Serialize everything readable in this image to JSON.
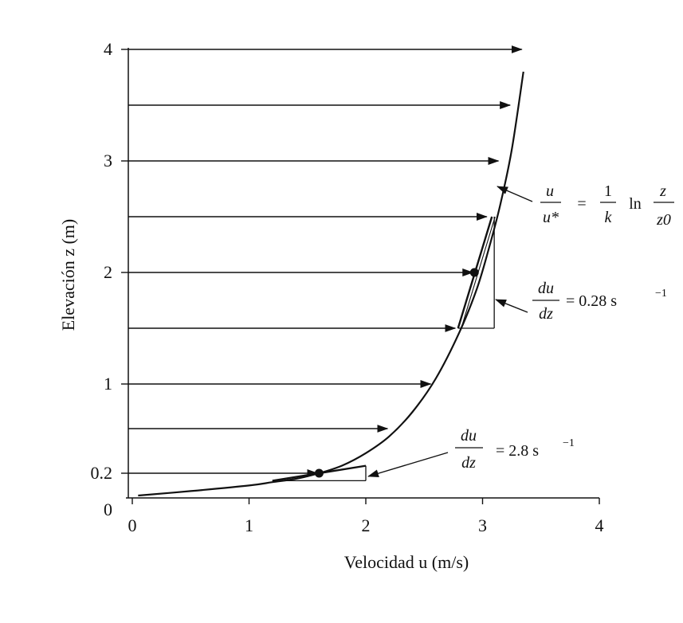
{
  "chart_data": {
    "type": "line",
    "title": "",
    "xlabel": "Velocidad u (m/s)",
    "ylabel": "Elevación z (m)",
    "xlim": [
      0,
      4
    ],
    "ylim": [
      0,
      4
    ],
    "grid": false,
    "x_ticks": [
      "0",
      "1",
      "2",
      "3",
      "4"
    ],
    "y_ticks": [
      {
        "label": "0",
        "value": 0
      },
      {
        "label": "0.2",
        "value": 0.2
      },
      {
        "label": "1",
        "value": 1
      },
      {
        "label": "2",
        "value": 2
      },
      {
        "label": "3",
        "value": 3
      },
      {
        "label": "4",
        "value": 4
      }
    ],
    "series": [
      {
        "type": "curve",
        "x": [
          0.05,
          0.5,
          1.0,
          1.2,
          1.4,
          1.6,
          1.8,
          2.0,
          2.2,
          2.4,
          2.6,
          2.8,
          2.95,
          3.05,
          3.15,
          3.25,
          3.35
        ],
        "y": [
          0.0,
          0.04,
          0.09,
          0.12,
          0.15,
          0.2,
          0.27,
          0.38,
          0.53,
          0.75,
          1.05,
          1.46,
          1.85,
          2.2,
          2.6,
          3.1,
          3.8
        ]
      }
    ],
    "velocity_arrows": [
      {
        "z": 0.2,
        "u": 1.6
      },
      {
        "z": 0.6,
        "u": 2.2
      },
      {
        "z": 1.0,
        "u": 2.57
      },
      {
        "z": 1.5,
        "u": 2.78
      },
      {
        "z": 2.0,
        "u": 2.93
      },
      {
        "z": 2.5,
        "u": 3.05
      },
      {
        "z": 3.0,
        "u": 3.15
      },
      {
        "z": 3.5,
        "u": 3.25
      },
      {
        "z": 4.0,
        "u": 3.35
      }
    ],
    "tangent_points": [
      {
        "u": 1.6,
        "z": 0.2
      },
      {
        "u": 2.93,
        "z": 2.0
      }
    ],
    "annotations": {
      "law": {
        "lhs_num": "u",
        "lhs_den": "u*",
        "eq": "=",
        "c_num": "1",
        "c_den": "k",
        "ln": "ln",
        "r_num": "z",
        "r_den": "z0"
      },
      "slope_top": {
        "num": "du",
        "den": "dz",
        "value": "= 0.28 s",
        "exp": "−1"
      },
      "slope_bottom": {
        "num": "du",
        "den": "dz",
        "value": "= 2.8 s",
        "exp": "−1"
      }
    }
  }
}
